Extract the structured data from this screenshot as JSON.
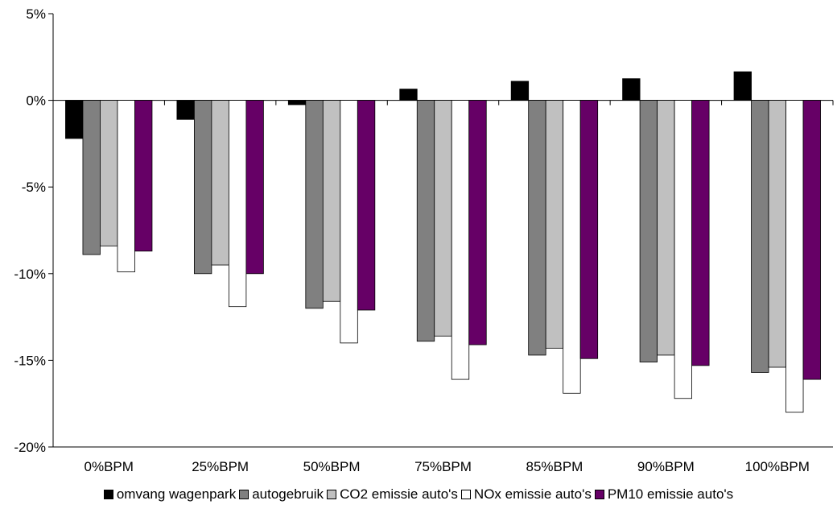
{
  "chart_data": {
    "type": "bar",
    "title": "",
    "xlabel": "",
    "ylabel": "",
    "ylim": [
      -20,
      5
    ],
    "y_ticks": [
      "5%",
      "0%",
      "-5%",
      "-10%",
      "-15%",
      "-20%"
    ],
    "y_tick_values": [
      5,
      0,
      -5,
      -10,
      -15,
      -20
    ],
    "categories": [
      "0%BPM",
      "25%BPM",
      "50%BPM",
      "75%BPM",
      "85%BPM",
      "90%BPM",
      "100%BPM"
    ],
    "grid": false,
    "legend_position": "bottom",
    "series": [
      {
        "name": "omvang wagenpark",
        "color": "#000000",
        "values": [
          -2.2,
          -1.1,
          -0.25,
          0.65,
          1.1,
          1.25,
          1.65
        ]
      },
      {
        "name": "autogebruik",
        "color": "#808080",
        "values": [
          -8.9,
          -10.0,
          -12.0,
          -13.9,
          -14.7,
          -15.1,
          -15.7
        ]
      },
      {
        "name": "CO2 emissie auto's",
        "color": "#c0c0c0",
        "values": [
          -8.4,
          -9.5,
          -11.6,
          -13.6,
          -14.3,
          -14.7,
          -15.4
        ]
      },
      {
        "name": "NOx emissie auto's",
        "color": "#ffffff",
        "values": [
          -9.9,
          -11.9,
          -14.0,
          -16.1,
          -16.9,
          -17.2,
          -18.0
        ]
      },
      {
        "name": "PM10 emissie auto's",
        "color": "#660066",
        "values": [
          -8.7,
          -10.0,
          -12.1,
          -14.1,
          -14.9,
          -15.3,
          -16.1
        ]
      }
    ]
  }
}
